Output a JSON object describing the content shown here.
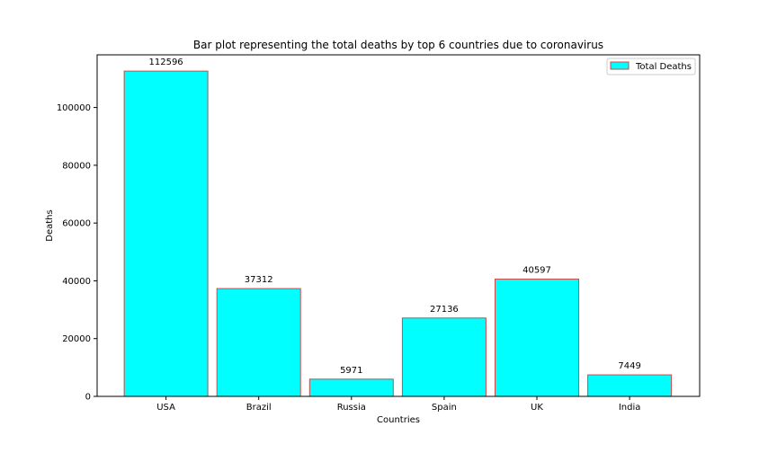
{
  "chart_data": {
    "type": "bar",
    "title": "Bar plot representing the total deaths by top 6 countries due to coronavirus",
    "xlabel": "Countries",
    "ylabel": "Deaths",
    "categories": [
      "USA",
      "Brazil",
      "Russia",
      "Spain",
      "UK",
      "India"
    ],
    "series": [
      {
        "name": "Total Deaths",
        "values": [
          112596,
          37312,
          5971,
          27136,
          40597,
          7449
        ]
      }
    ],
    "data_labels": [
      "112596",
      "37312",
      "5971",
      "27136",
      "40597",
      "7449"
    ],
    "ylim": [
      0,
      118230
    ],
    "yticks": [
      0,
      20000,
      40000,
      60000,
      80000,
      100000
    ],
    "ytick_labels": [
      "0",
      "20000",
      "40000",
      "60000",
      "80000",
      "100000"
    ],
    "grid": false,
    "legend_position": "top-right",
    "colors": {
      "bar_fill": "#00ffff",
      "bar_edge": "#cd4a4a",
      "axes": "#000000"
    }
  }
}
